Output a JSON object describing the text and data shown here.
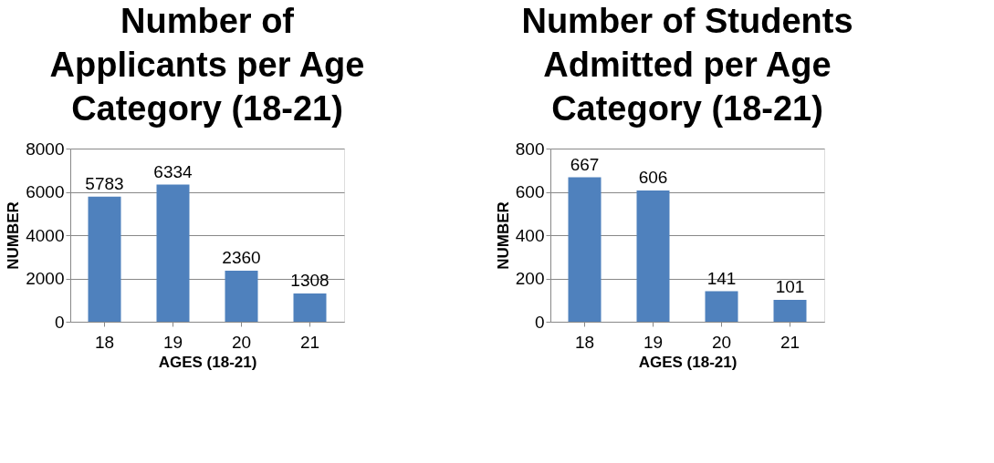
{
  "chart_data": [
    {
      "type": "bar",
      "title": "Number of Applicants per Age Category (18-21)",
      "xlabel": "AGES (18-21)",
      "ylabel": "NUMBER",
      "categories": [
        "18",
        "19",
        "20",
        "21"
      ],
      "values": [
        5783,
        6334,
        2360,
        1308
      ],
      "color": "#4f81bd",
      "ylim": [
        0,
        8000
      ],
      "yticks": [
        0,
        2000,
        4000,
        6000,
        8000
      ],
      "grid": "y",
      "data_labels": true
    },
    {
      "type": "bar",
      "title": "Number of Students Admitted per Age Category (18-21)",
      "xlabel": "AGES (18-21)",
      "ylabel": "NUMBER",
      "categories": [
        "18",
        "19",
        "20",
        "21"
      ],
      "values": [
        667,
        606,
        141,
        101
      ],
      "color": "#4f81bd",
      "ylim": [
        0,
        800
      ],
      "yticks": [
        0,
        200,
        400,
        600,
        800
      ],
      "grid": "y",
      "data_labels": true
    }
  ]
}
